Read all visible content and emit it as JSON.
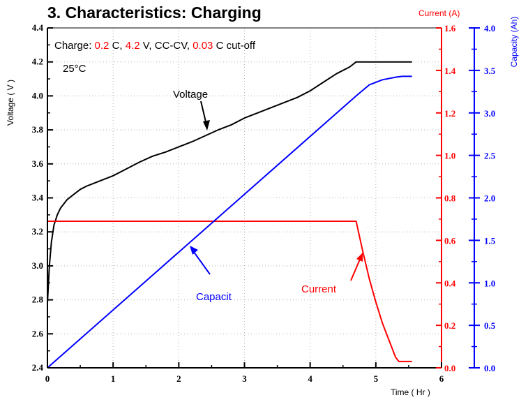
{
  "title": "3. Characteristics: Charging",
  "chart_data": {
    "type": "line",
    "condition": {
      "prefix": "Charge: ",
      "c_rate": "0.2",
      "c_rate_unit": " C, ",
      "voltage": "4.2",
      "voltage_unit": " V, CC-CV, ",
      "cutoff": "0.03",
      "cutoff_unit": " C cut-off",
      "temperature": "25°C"
    },
    "xlabel": "Time  ( Hr )",
    "ylabel_left": "Voltage  ( V )",
    "ylabel_current": "Current  (A)",
    "ylabel_capacity": "Capacity  (Ah)",
    "xlim": [
      0,
      6
    ],
    "x_ticks": [
      "0",
      "1",
      "2",
      "3",
      "4",
      "5",
      "6"
    ],
    "ylim_voltage": [
      2.4,
      4.4
    ],
    "voltage_ticks": [
      "2.4",
      "2.6",
      "2.8",
      "3.0",
      "3.2",
      "3.4",
      "3.6",
      "3.8",
      "4.0",
      "4.2",
      "4.4"
    ],
    "ylim_current": [
      0.0,
      1.6
    ],
    "current_ticks": [
      "0.0",
      "0.2",
      "0.4",
      "0.6",
      "0.8",
      "1.0",
      "1.2",
      "1.4",
      "1.6"
    ],
    "ylim_capacity": [
      0.0,
      4.0
    ],
    "capacity_ticks": [
      "0.0",
      "0.5",
      "1.0",
      "1.5",
      "2.0",
      "2.5",
      "3.0",
      "3.5",
      "4.0"
    ],
    "grid": true,
    "colors": {
      "voltage": "#000000",
      "current": "#ff0000",
      "capacity": "#0000ff",
      "grid": "#b0b0b0"
    },
    "series": [
      {
        "name": "Voltage",
        "axis": "voltage",
        "x": [
          0,
          0.03,
          0.06,
          0.1,
          0.15,
          0.2,
          0.3,
          0.4,
          0.5,
          0.6,
          0.8,
          1.0,
          1.2,
          1.4,
          1.6,
          1.8,
          2.0,
          2.2,
          2.4,
          2.6,
          2.8,
          3.0,
          3.2,
          3.4,
          3.6,
          3.8,
          4.0,
          4.2,
          4.4,
          4.6,
          4.7,
          5.0,
          5.3,
          5.55
        ],
        "values": [
          2.78,
          3.0,
          3.14,
          3.24,
          3.3,
          3.34,
          3.39,
          3.42,
          3.45,
          3.47,
          3.5,
          3.53,
          3.57,
          3.61,
          3.645,
          3.67,
          3.7,
          3.73,
          3.765,
          3.8,
          3.83,
          3.87,
          3.9,
          3.93,
          3.96,
          3.99,
          4.03,
          4.08,
          4.13,
          4.17,
          4.2,
          4.2,
          4.2,
          4.2
        ]
      },
      {
        "name": "Current",
        "axis": "current",
        "x": [
          0,
          4.7,
          4.75,
          4.8,
          4.9,
          5.0,
          5.1,
          5.2,
          5.3,
          5.35,
          5.4,
          5.55
        ],
        "values": [
          0.69,
          0.69,
          0.62,
          0.55,
          0.42,
          0.31,
          0.21,
          0.13,
          0.05,
          0.03,
          0.03,
          0.03
        ]
      },
      {
        "name": "Capacity",
        "axis": "capacity",
        "x": [
          0,
          4.7,
          4.9,
          5.1,
          5.3,
          5.4,
          5.55
        ],
        "values": [
          0.0,
          3.2,
          3.33,
          3.39,
          3.42,
          3.43,
          3.43
        ]
      }
    ],
    "annotations": [
      {
        "text": "Voltage",
        "color": "#000000"
      },
      {
        "text": "Capacit",
        "color": "#0000ff"
      },
      {
        "text": "Current",
        "color": "#ff0000"
      }
    ]
  }
}
